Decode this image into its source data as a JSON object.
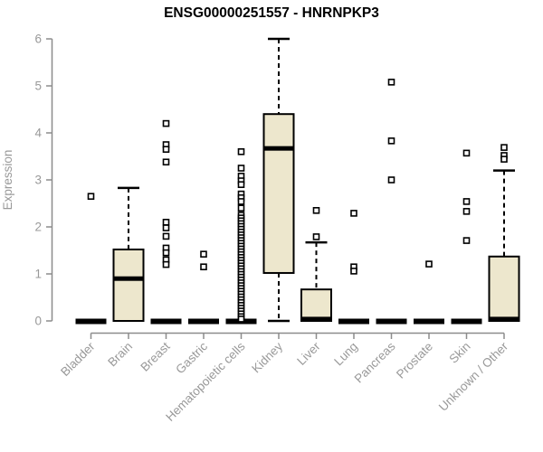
{
  "window": {
    "title": "ENSG00000251557 - HNRNPKP3"
  },
  "chart_data": {
    "type": "boxplot",
    "title": "ENSG00000251557 - HNRNPKP3",
    "xlabel": "",
    "ylabel": "Expression",
    "ylim": [
      0,
      6
    ],
    "yticks": [
      0,
      1,
      2,
      3,
      4,
      5,
      6
    ],
    "grid": false,
    "legend": "none",
    "colors": {
      "box_fill": "#EDE7CD",
      "box_stroke": "#000000",
      "axis_line": "#8C8C8C",
      "tick_label": "#999999",
      "axis_title": "#999999",
      "title_color": "#000000",
      "background": "#FFFFFF",
      "outlier_fill": "#FFFFFF"
    },
    "categories": [
      "Bladder",
      "Brain",
      "Breast",
      "Gastric",
      "Hematopoietic cells",
      "Kidney",
      "Liver",
      "Lung",
      "Pancreas",
      "Prostate",
      "Skin",
      "Unknown / Other"
    ],
    "series": [
      {
        "name": "Bladder",
        "q1": 0,
        "median": 0,
        "q3": 0,
        "whisker_low": 0,
        "whisker_high": 0,
        "outliers": [
          2.65
        ]
      },
      {
        "name": "Brain",
        "q1": 0,
        "median": 0.9,
        "q3": 1.52,
        "whisker_low": 0,
        "whisker_high": 2.83,
        "outliers": []
      },
      {
        "name": "Breast",
        "q1": 0,
        "median": 0,
        "q3": 0,
        "whisker_low": 0,
        "whisker_high": 0,
        "outliers": [
          4.2,
          3.75,
          3.65,
          3.38,
          2.1,
          1.98,
          1.8,
          1.55,
          1.45,
          1.3,
          1.2
        ]
      },
      {
        "name": "Gastric",
        "q1": 0,
        "median": 0,
        "q3": 0,
        "whisker_low": 0,
        "whisker_high": 0,
        "outliers": [
          1.42,
          1.15
        ]
      },
      {
        "name": "Hematopoietic cells",
        "q1": 0,
        "median": 0,
        "q3": 0,
        "whisker_low": 0,
        "whisker_high": 0,
        "outliers": [
          3.6,
          3.25,
          3.08,
          2.98,
          2.9,
          2.7,
          2.62,
          2.54,
          2.4,
          2.25,
          2.19,
          2.13,
          2.07,
          2.01,
          1.95,
          1.89,
          1.83,
          1.77,
          1.71,
          1.65,
          1.59,
          1.53,
          1.47,
          1.41,
          1.35,
          1.29,
          1.23,
          1.17,
          1.11,
          1.05,
          0.99,
          0.93,
          0.87,
          0.81,
          0.75,
          0.69,
          0.63,
          0.57,
          0.51,
          0.45,
          0.39,
          0.33,
          0.27,
          0.21,
          0.15,
          0.09,
          0.04
        ]
      },
      {
        "name": "Kidney",
        "q1": 1.02,
        "median": 3.67,
        "q3": 4.4,
        "whisker_low": 0,
        "whisker_high": 6.0,
        "outliers": []
      },
      {
        "name": "Liver",
        "q1": 0,
        "median": 0.04,
        "q3": 0.67,
        "whisker_low": 0,
        "whisker_high": 1.67,
        "outliers": [
          2.35,
          1.79
        ]
      },
      {
        "name": "Lung",
        "q1": 0,
        "median": 0,
        "q3": 0,
        "whisker_low": 0,
        "whisker_high": 0,
        "outliers": [
          2.29,
          1.15,
          1.06
        ]
      },
      {
        "name": "Pancreas",
        "q1": 0,
        "median": 0,
        "q3": 0,
        "whisker_low": 0,
        "whisker_high": 0,
        "outliers": [
          5.08,
          3.83,
          3.0
        ]
      },
      {
        "name": "Prostate",
        "q1": 0,
        "median": 0,
        "q3": 0,
        "whisker_low": 0,
        "whisker_high": 0,
        "outliers": [
          1.21
        ]
      },
      {
        "name": "Skin",
        "q1": 0,
        "median": 0,
        "q3": 0,
        "whisker_low": 0,
        "whisker_high": 0,
        "outliers": [
          3.57,
          2.54,
          2.33,
          1.71
        ]
      },
      {
        "name": "Unknown / Other",
        "q1": 0,
        "median": 0.04,
        "q3": 1.37,
        "whisker_low": 0,
        "whisker_high": 3.2,
        "outliers": [
          3.69,
          3.52,
          3.44
        ]
      }
    ]
  }
}
